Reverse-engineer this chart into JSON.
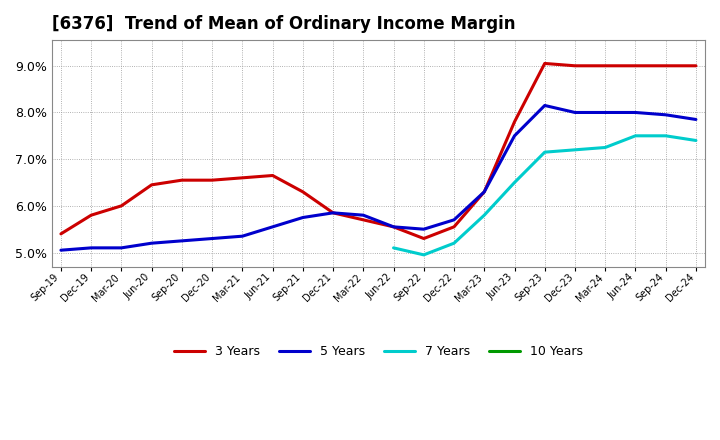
{
  "title": "[6376]  Trend of Mean of Ordinary Income Margin",
  "title_fontsize": 12,
  "ylim": [
    4.7,
    9.55
  ],
  "yticks": [
    5.0,
    6.0,
    7.0,
    8.0,
    9.0
  ],
  "background_color": "#ffffff",
  "plot_bg_color": "#ffffff",
  "grid_color": "#999999",
  "legend_labels": [
    "3 Years",
    "5 Years",
    "7 Years",
    "10 Years"
  ],
  "legend_colors": [
    "#cc0000",
    "#0000cc",
    "#00cccc",
    "#009900"
  ],
  "x_labels": [
    "Sep-19",
    "Dec-19",
    "Mar-20",
    "Jun-20",
    "Sep-20",
    "Dec-20",
    "Mar-21",
    "Jun-21",
    "Sep-21",
    "Dec-21",
    "Mar-22",
    "Jun-22",
    "Sep-22",
    "Dec-22",
    "Mar-23",
    "Jun-23",
    "Sep-23",
    "Dec-23",
    "Mar-24",
    "Jun-24",
    "Sep-24",
    "Dec-24"
  ],
  "series_3yr": [
    5.4,
    5.8,
    6.0,
    6.45,
    6.55,
    6.55,
    6.6,
    6.65,
    6.3,
    5.85,
    5.7,
    5.55,
    5.3,
    5.55,
    6.3,
    7.8,
    9.05,
    9.0,
    9.0,
    9.0,
    9.0,
    9.0
  ],
  "series_5yr": [
    5.05,
    5.1,
    5.1,
    5.2,
    5.25,
    5.3,
    5.35,
    5.55,
    5.75,
    5.85,
    5.8,
    5.55,
    5.5,
    5.7,
    6.3,
    7.5,
    8.15,
    8.0,
    8.0,
    8.0,
    7.95,
    7.85
  ],
  "series_7yr": [
    null,
    null,
    null,
    null,
    null,
    null,
    null,
    null,
    null,
    null,
    null,
    5.1,
    4.95,
    5.2,
    5.8,
    6.5,
    7.15,
    7.2,
    7.25,
    7.5,
    7.5,
    7.4
  ],
  "series_10yr": [
    null,
    null,
    null,
    null,
    null,
    null,
    null,
    null,
    null,
    null,
    null,
    null,
    null,
    null,
    null,
    null,
    null,
    null,
    null,
    null,
    null,
    null
  ]
}
